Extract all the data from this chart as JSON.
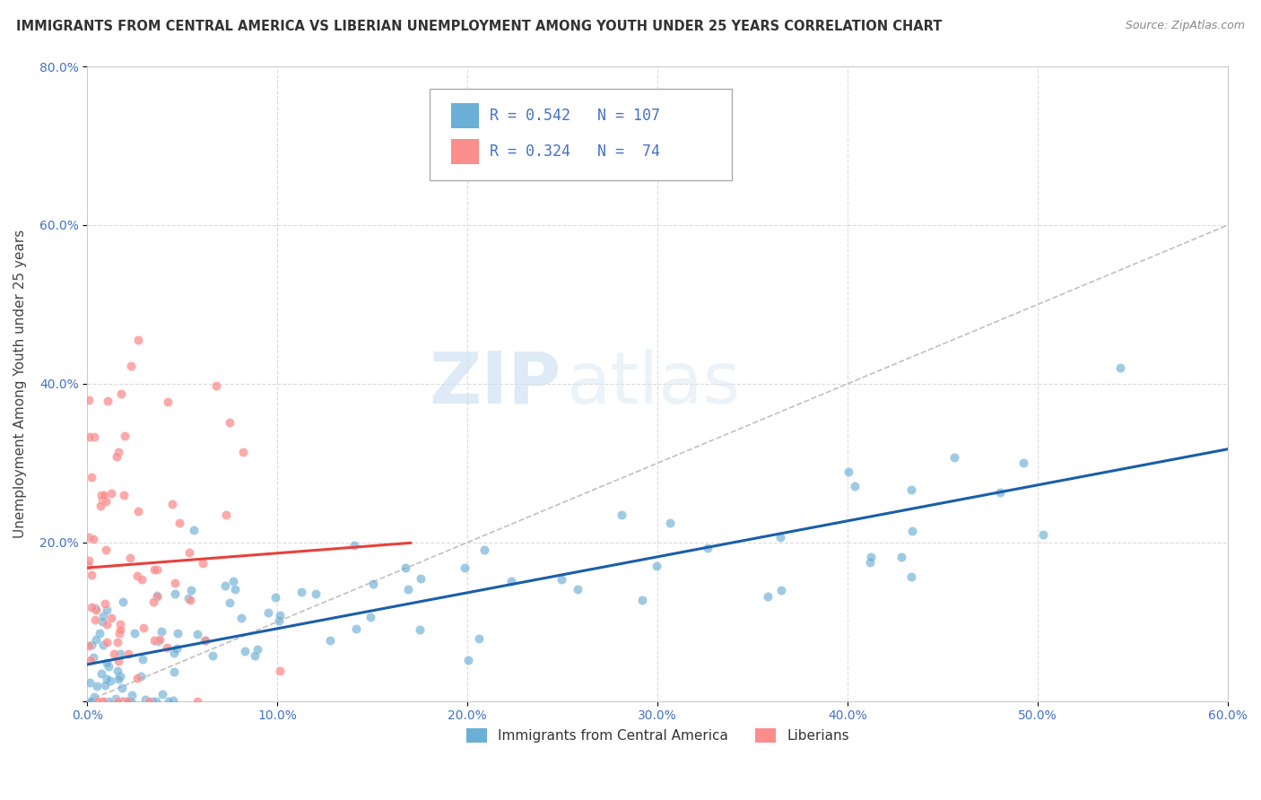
{
  "title": "IMMIGRANTS FROM CENTRAL AMERICA VS LIBERIAN UNEMPLOYMENT AMONG YOUTH UNDER 25 YEARS CORRELATION CHART",
  "source": "Source: ZipAtlas.com",
  "ylabel": "Unemployment Among Youth under 25 years",
  "xlim": [
    0.0,
    0.6
  ],
  "ylim": [
    0.0,
    0.8
  ],
  "xticks": [
    0.0,
    0.1,
    0.2,
    0.3,
    0.4,
    0.5,
    0.6
  ],
  "yticks": [
    0.0,
    0.2,
    0.4,
    0.6,
    0.8
  ],
  "xticklabels": [
    "0.0%",
    "10.0%",
    "20.0%",
    "30.0%",
    "40.0%",
    "50.0%",
    "60.0%"
  ],
  "yticklabels": [
    "",
    "20.0%",
    "40.0%",
    "60.0%",
    "80.0%"
  ],
  "series1_label": "Immigrants from Central America",
  "series2_label": "Liberians",
  "series1_color": "#6baed6",
  "series2_color": "#fc8d8d",
  "series1_line_color": "#1a5ea8",
  "series2_line_color": "#e8413a",
  "watermark_zip": "ZIP",
  "watermark_atlas": "atlas",
  "background_color": "#ffffff",
  "grid_color": "#cccccc",
  "seed": 42,
  "n1": 107,
  "n2": 74,
  "r1": 0.542,
  "r2": 0.324
}
